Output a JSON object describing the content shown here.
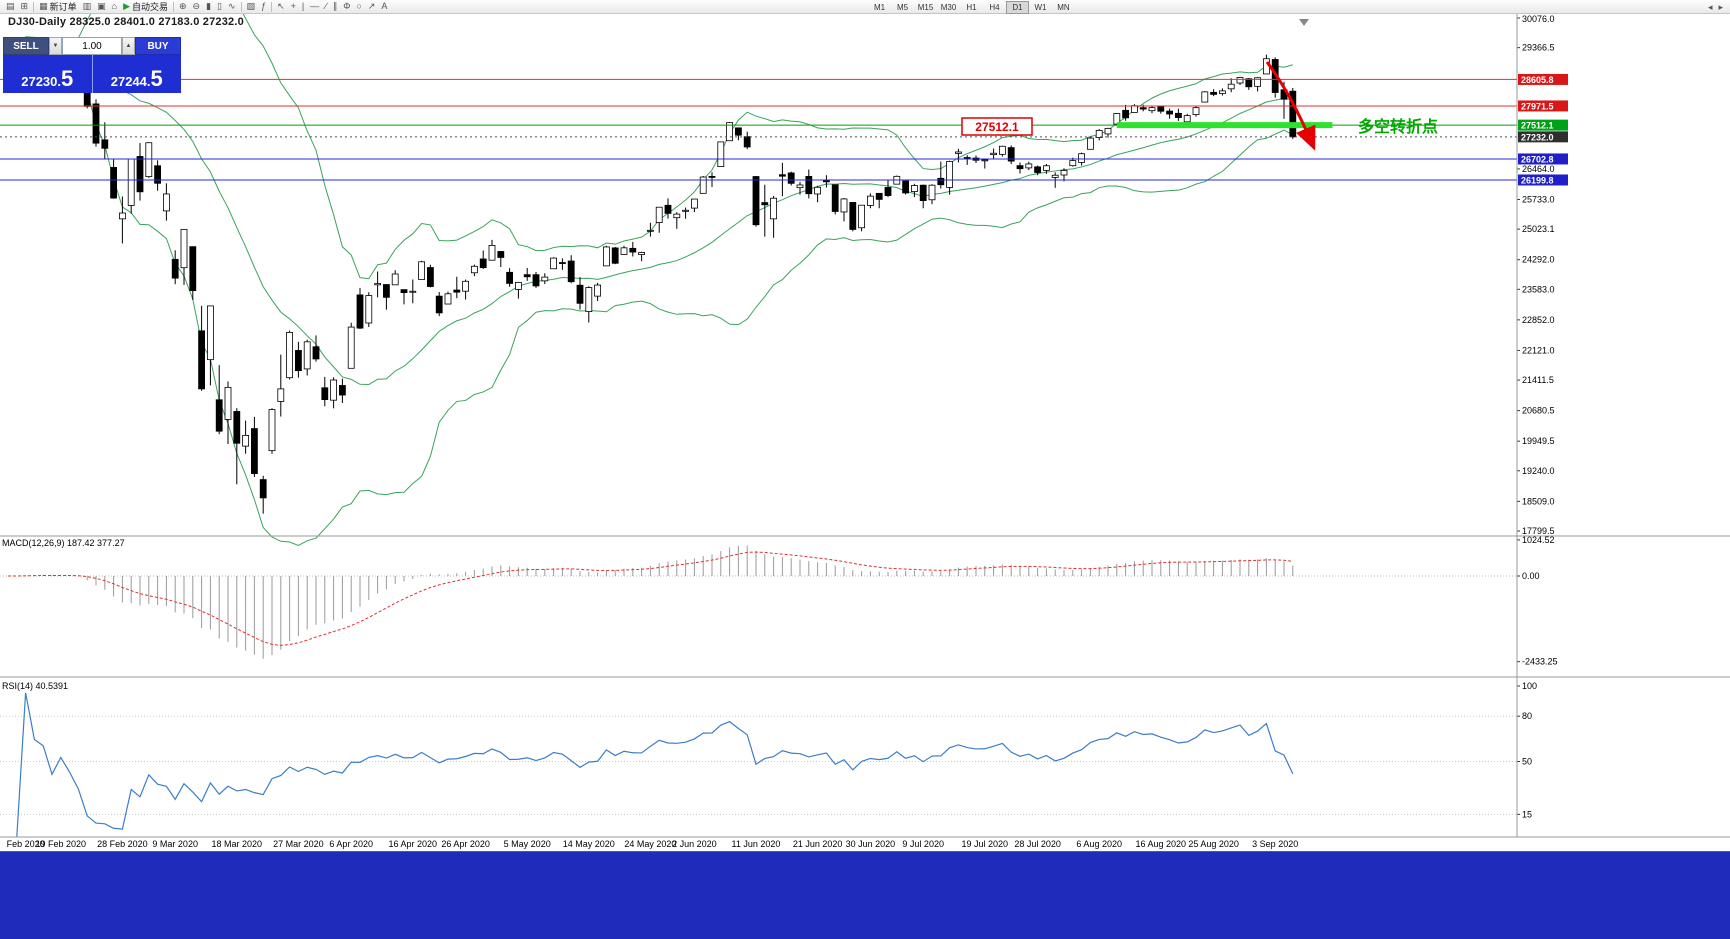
{
  "toolbar": {
    "groups_left": [
      {
        "name": "charts-grid-button",
        "icon": "charts-grid-icon",
        "glyph": "▤"
      },
      {
        "name": "new-window-button",
        "icon": "new-window-icon",
        "glyph": "⊞"
      },
      {
        "name": "sep"
      },
      {
        "name": "new-order-button",
        "icon": "new-order-icon",
        "glyph": "▦",
        "label": "新订单"
      },
      {
        "name": "market-watch-button",
        "icon": "market-watch-icon",
        "glyph": "▥"
      },
      {
        "name": "data-window-button",
        "icon": "data-window-icon",
        "glyph": "▣"
      },
      {
        "name": "navigator-button",
        "icon": "navigator-icon",
        "glyph": "⌂"
      },
      {
        "name": "auto-trading-button",
        "icon": "auto-trading-icon",
        "glyph": "▶",
        "label": "自动交易",
        "glyph_color": "#1f9d2f"
      },
      {
        "name": "sep"
      },
      {
        "name": "zoom-in-button",
        "icon": "zoom-in-icon",
        "glyph": "⊕"
      },
      {
        "name": "zoom-out-button",
        "icon": "zoom-out-icon",
        "glyph": "⊖"
      },
      {
        "name": "bar-chart-button",
        "icon": "bar-chart-icon",
        "glyph": "▮"
      },
      {
        "name": "candlestick-chart-button",
        "icon": "candlestick-chart-icon",
        "glyph": "▯"
      },
      {
        "name": "line-chart-button",
        "icon": "line-chart-icon",
        "glyph": "∿"
      },
      {
        "name": "sep"
      },
      {
        "name": "tile-windows-button",
        "icon": "tile-windows-icon",
        "glyph": "▧"
      },
      {
        "name": "indicators-button",
        "icon": "indicators-icon",
        "glyph": "ƒ"
      },
      {
        "name": "sep"
      },
      {
        "name": "cursor-button",
        "icon": "cursor-icon",
        "glyph": "↖"
      },
      {
        "name": "crosshair-button",
        "icon": "crosshair-icon",
        "glyph": "+"
      },
      {
        "name": "vertical-line-button",
        "icon": "vertical-line-icon",
        "glyph": "|"
      },
      {
        "name": "horizontal-line-button",
        "icon": "horizontal-line-icon",
        "glyph": "―"
      },
      {
        "name": "trendline-button",
        "icon": "trendline-icon",
        "glyph": "∕"
      },
      {
        "name": "channel-button",
        "icon": "channel-icon",
        "glyph": "∥"
      },
      {
        "name": "fibonacci-button",
        "icon": "fibonacci-icon",
        "glyph": "Φ"
      },
      {
        "name": "shapes-button",
        "icon": "shapes-icon",
        "glyph": "○"
      },
      {
        "name": "arrows-button",
        "icon": "arrows-icon",
        "glyph": "↗"
      },
      {
        "name": "text-tool-button",
        "icon": "text-tool-icon",
        "glyph": "A"
      }
    ],
    "timeframes": [
      "M1",
      "M5",
      "M15",
      "M30",
      "H1",
      "H4",
      "D1",
      "W1",
      "MN"
    ],
    "active_timeframe": "D1",
    "groups_right": [
      {
        "name": "toolbar-scroll-left-button",
        "icon": "chevron-left-icon",
        "glyph": "◂"
      },
      {
        "name": "toolbar-scroll-right-button",
        "icon": "chevron-right-icon",
        "glyph": "▸"
      }
    ]
  },
  "trade_panel": {
    "sell_label": "SELL",
    "buy_label": "BUY",
    "volume": "1.00",
    "sell_price_main": "27230.",
    "sell_price_big": "5",
    "buy_price_main": "27244.",
    "buy_price_big": "5"
  },
  "chart_header": {
    "symbol_ohlc": "DJ30-Daily  28325.0 28401.0 27183.0 27232.0"
  },
  "macd_panel": {
    "header": "MACD(12,26,9) 187.42 377.27"
  },
  "rsi_panel": {
    "header": "RSI(14) 40.5391"
  },
  "annotations": {
    "price_callout": "27512.1",
    "turning_point": "多空转折点"
  },
  "chart_data": {
    "type": "candlestick",
    "symbol": "DJ30",
    "timeframe": "Daily",
    "ohlc_display": [
      28325.0,
      28401.0,
      27183.0,
      27232.0
    ],
    "y_range": [
      17799.5,
      30076.0
    ],
    "price_axis_ticks": [
      "30076.0",
      "29366.5",
      "26464.0",
      "25733.0",
      "25023.1",
      "24292.0",
      "23583.0",
      "22852.0",
      "22121.0",
      "21411.5",
      "20680.5",
      "19949.5",
      "19240.0",
      "18509.0",
      "17799.5"
    ],
    "horizontal_levels": [
      {
        "value": 28605.8,
        "label": "28605.8",
        "color": "#e03030",
        "bg": "#d81818"
      },
      {
        "value": 27971.5,
        "label": "27971.5",
        "color": "#e03030",
        "bg": "#d81818"
      },
      {
        "value": 27512.1,
        "label": "27512.1",
        "color": "#00a000",
        "bg": "#00a018"
      },
      {
        "value": 27232.0,
        "label": "27232.0",
        "color": "#505050",
        "bg": "#2f2f2f",
        "dotted": true
      },
      {
        "value": 26702.8,
        "label": "26702.8",
        "color": "#2828d8",
        "bg": "#2020c8"
      },
      {
        "value": 26199.8,
        "label": "26199.8",
        "color": "#2828d8",
        "bg": "#2020c8"
      }
    ],
    "support_highlight": {
      "value": 27512.1,
      "color": "#2be32b",
      "from_index": 126,
      "to_index": 150.5
    },
    "indicators": {
      "bollinger": {
        "period": 20,
        "deviation": 2
      },
      "macd": {
        "fast": 12,
        "slow": 26,
        "signal": 9,
        "display_values": [
          187.42,
          377.27
        ]
      },
      "rsi": {
        "period": 14,
        "display_value": 40.5391
      }
    },
    "macd_axis_ticks": [
      {
        "value": 1024.52,
        "label": "1024.52"
      },
      {
        "value": 0,
        "label": "0.00"
      },
      {
        "value": -2433.25,
        "label": "-2433.25"
      }
    ],
    "rsi_axis_ticks": [
      {
        "value": 100,
        "label": "100"
      },
      {
        "value": 80,
        "label": "80"
      },
      {
        "value": 50,
        "label": "50"
      },
      {
        "value": 15,
        "label": "15"
      }
    ],
    "rsi_guide_levels": [
      80,
      50,
      15
    ],
    "date_labels": [
      {
        "label": "Feb 2020",
        "index": 2
      },
      {
        "label": "19 Feb 2020",
        "index": 6
      },
      {
        "label": "28 Feb 2020",
        "index": 13
      },
      {
        "label": "9 Mar 2020",
        "index": 19
      },
      {
        "label": "18 Mar 2020",
        "index": 26
      },
      {
        "label": "27 Mar 2020",
        "index": 33
      },
      {
        "label": "6 Apr 2020",
        "index": 39
      },
      {
        "label": "16 Apr 2020",
        "index": 46
      },
      {
        "label": "26 Apr 2020",
        "index": 52
      },
      {
        "label": "5 May 2020",
        "index": 59
      },
      {
        "label": "14 May 2020",
        "index": 66
      },
      {
        "label": "24 May 2020",
        "index": 73
      },
      {
        "label": "2 Jun 2020",
        "index": 78
      },
      {
        "label": "11 Jun 2020",
        "index": 85
      },
      {
        "label": "21 Jun 2020",
        "index": 92
      },
      {
        "label": "30 Jun 2020",
        "index": 98
      },
      {
        "label": "9 Jul 2020",
        "index": 104
      },
      {
        "label": "19 Jul 2020",
        "index": 111
      },
      {
        "label": "28 Jul 2020",
        "index": 117
      },
      {
        "label": "6 Aug 2020",
        "index": 124
      },
      {
        "label": "16 Aug 2020",
        "index": 131
      },
      {
        "label": "25 Aug 2020",
        "index": 137
      },
      {
        "label": "3 Sep 2020",
        "index": 144
      }
    ],
    "candles": [
      [
        29210,
        29310,
        29130,
        29277
      ],
      [
        29290,
        29415,
        29210,
        29276
      ],
      [
        29320,
        29568,
        29300,
        29551
      ],
      [
        29460,
        29535,
        29345,
        29423
      ],
      [
        29420,
        29482,
        29290,
        29398
      ],
      [
        29280,
        29330,
        29090,
        29232
      ],
      [
        29270,
        29409,
        29200,
        29348
      ],
      [
        29320,
        29368,
        28960,
        29220
      ],
      [
        29150,
        29230,
        28892,
        28992
      ],
      [
        28400,
        28482,
        27912,
        27961
      ],
      [
        28020,
        28130,
        26997,
        27081
      ],
      [
        27160,
        27580,
        26704,
        26958
      ],
      [
        26500,
        26690,
        25752,
        25767
      ],
      [
        25270,
        25805,
        24681,
        25409
      ],
      [
        25590,
        26706,
        25391,
        26703
      ],
      [
        26762,
        27084,
        25706,
        25917
      ],
      [
        26280,
        27102,
        26251,
        27091
      ],
      [
        26540,
        26671,
        25943,
        26121
      ],
      [
        25460,
        26120,
        25226,
        25865
      ],
      [
        24300,
        24516,
        23706,
        23851
      ],
      [
        24100,
        25020,
        23690,
        25018
      ],
      [
        24604,
        24604,
        23328,
        23553
      ],
      [
        22590,
        23189,
        21154,
        21201
      ],
      [
        21900,
        23186,
        21285,
        23186
      ],
      [
        20940,
        21768,
        20116,
        20188
      ],
      [
        20470,
        21379,
        19882,
        21237
      ],
      [
        20660,
        20738,
        18917,
        19899
      ],
      [
        19830,
        20442,
        19649,
        20087
      ],
      [
        20250,
        20531,
        19094,
        19174
      ],
      [
        19030,
        19121,
        18214,
        18592
      ],
      [
        19722,
        20738,
        19649,
        20705
      ],
      [
        20900,
        22020,
        20538,
        21200
      ],
      [
        21468,
        22595,
        21427,
        22552
      ],
      [
        22120,
        22327,
        21469,
        21637
      ],
      [
        21678,
        22378,
        21522,
        22327
      ],
      [
        22208,
        22482,
        21852,
        21917
      ],
      [
        21227,
        21487,
        20784,
        20944
      ],
      [
        20930,
        21477,
        20735,
        21413
      ],
      [
        21282,
        21447,
        20863,
        21053
      ],
      [
        21693,
        22783,
        21693,
        22680
      ],
      [
        23449,
        23617,
        22634,
        22654
      ],
      [
        22777,
        23513,
        22682,
        23434
      ],
      [
        23690,
        24009,
        23392,
        23719
      ],
      [
        23698,
        23698,
        23096,
        23391
      ],
      [
        23690,
        24041,
        23690,
        23950
      ],
      [
        23576,
        23577,
        23222,
        23504
      ],
      [
        23530,
        23818,
        23248,
        23537
      ],
      [
        23817,
        24264,
        23817,
        24242
      ],
      [
        24104,
        24170,
        23628,
        23650
      ],
      [
        23420,
        23520,
        22942,
        23019
      ],
      [
        23231,
        23529,
        23231,
        23476
      ],
      [
        23566,
        23885,
        23371,
        23515
      ],
      [
        23538,
        23816,
        23338,
        23775
      ],
      [
        23979,
        24174,
        23898,
        24134
      ],
      [
        24310,
        24512,
        24069,
        24102
      ],
      [
        24280,
        24765,
        24280,
        24634
      ],
      [
        24489,
        24489,
        24117,
        24346
      ],
      [
        23990,
        24090,
        23645,
        23724
      ],
      [
        23581,
        23762,
        23361,
        23749
      ],
      [
        23934,
        24094,
        23786,
        23883
      ],
      [
        23933,
        23998,
        23617,
        23665
      ],
      [
        23786,
        23968,
        23708,
        23876
      ],
      [
        24075,
        24349,
        24075,
        24331
      ],
      [
        24224,
        24324,
        24049,
        24222
      ],
      [
        24260,
        24400,
        23728,
        23765
      ],
      [
        23681,
        23874,
        23096,
        23248
      ],
      [
        23050,
        23655,
        22790,
        23625
      ],
      [
        23420,
        23738,
        23302,
        23685
      ],
      [
        24144,
        24624,
        24144,
        24597
      ],
      [
        24574,
        24599,
        24186,
        24207
      ],
      [
        24418,
        24625,
        24418,
        24576
      ],
      [
        24564,
        24718,
        24369,
        24474
      ],
      [
        24414,
        24482,
        24256,
        24465
      ],
      [
        24994,
        25176,
        24843,
        24995
      ],
      [
        25180,
        25549,
        24937,
        25548
      ],
      [
        25594,
        25758,
        25274,
        25401
      ],
      [
        25297,
        25430,
        25032,
        25383
      ],
      [
        25450,
        25539,
        25272,
        25475
      ],
      [
        25527,
        25750,
        25432,
        25743
      ],
      [
        25880,
        26296,
        25880,
        26270
      ],
      [
        26285,
        26384,
        26032,
        26282
      ],
      [
        26520,
        27111,
        26520,
        27111
      ],
      [
        27139,
        27580,
        27139,
        27572
      ],
      [
        27447,
        27447,
        27151,
        27272
      ],
      [
        27236,
        27355,
        26938,
        26990
      ],
      [
        26282,
        26294,
        25082,
        25128
      ],
      [
        25659,
        26087,
        24844,
        25605
      ],
      [
        25270,
        25816,
        24817,
        25763
      ],
      [
        26326,
        26611,
        25811,
        26290
      ],
      [
        26368,
        26400,
        26068,
        26120
      ],
      [
        26016,
        26154,
        25848,
        26080
      ],
      [
        26285,
        26451,
        25759,
        25871
      ],
      [
        25865,
        26059,
        25667,
        26025
      ],
      [
        26186,
        26314,
        26019,
        26156
      ],
      [
        26086,
        26086,
        25376,
        25446
      ],
      [
        25434,
        25769,
        25209,
        25746
      ],
      [
        25662,
        25662,
        24971,
        25016
      ],
      [
        25056,
        25602,
        24971,
        25596
      ],
      [
        25590,
        25879,
        25523,
        25813
      ],
      [
        25880,
        25880,
        25523,
        25735
      ],
      [
        26021,
        26204,
        25788,
        25827
      ],
      [
        26100,
        26306,
        26100,
        26287
      ],
      [
        26175,
        26175,
        25849,
        25890
      ],
      [
        25923,
        26109,
        25788,
        26067
      ],
      [
        26075,
        26087,
        25523,
        25706
      ],
      [
        25726,
        26098,
        25621,
        26075
      ],
      [
        26240,
        26639,
        25996,
        26086
      ],
      [
        26021,
        26661,
        25848,
        26643
      ],
      [
        26835,
        26946,
        26619,
        26870
      ],
      [
        26737,
        26795,
        26560,
        26735
      ],
      [
        26724,
        26786,
        26605,
        26672
      ],
      [
        26659,
        26700,
        26473,
        26681
      ],
      [
        26807,
        26952,
        26710,
        26840
      ],
      [
        26813,
        27020,
        26760,
        27006
      ],
      [
        26974,
        27028,
        26581,
        26652
      ],
      [
        26543,
        26617,
        26354,
        26470
      ],
      [
        26489,
        26637,
        26436,
        26584
      ],
      [
        26514,
        26544,
        26316,
        26379
      ],
      [
        26430,
        26580,
        26346,
        26540
      ],
      [
        26261,
        26383,
        26012,
        26313
      ],
      [
        26319,
        26480,
        26166,
        26428
      ],
      [
        26542,
        26734,
        26518,
        26664
      ],
      [
        26620,
        26855,
        26543,
        26828
      ],
      [
        26934,
        27238,
        26934,
        27202
      ],
      [
        27215,
        27419,
        27147,
        27387
      ],
      [
        27302,
        27450,
        27213,
        27433
      ],
      [
        27537,
        27804,
        27497,
        27791
      ],
      [
        27867,
        27998,
        27616,
        27687
      ],
      [
        27817,
        28014,
        27817,
        27977
      ],
      [
        27930,
        28003,
        27843,
        27897
      ],
      [
        27858,
        27959,
        27798,
        27931
      ],
      [
        27960,
        27968,
        27788,
        27845
      ],
      [
        27848,
        27908,
        27666,
        27778
      ],
      [
        27795,
        27905,
        27612,
        27693
      ],
      [
        27591,
        27786,
        27543,
        27740
      ],
      [
        27764,
        27959,
        27715,
        27930
      ],
      [
        28064,
        28327,
        28064,
        28308
      ],
      [
        28297,
        28372,
        28206,
        28248
      ],
      [
        28268,
        28392,
        28220,
        28332
      ],
      [
        28381,
        28634,
        28299,
        28492
      ],
      [
        28520,
        28669,
        28472,
        28654
      ],
      [
        28623,
        28640,
        28355,
        28430
      ],
      [
        28440,
        28659,
        28319,
        28646
      ],
      [
        28737,
        29199,
        28737,
        29101
      ],
      [
        29083,
        29134,
        28169,
        28293
      ],
      [
        28359,
        28550,
        27665,
        28133
      ],
      [
        28325,
        28401,
        27183,
        27232
      ]
    ]
  }
}
